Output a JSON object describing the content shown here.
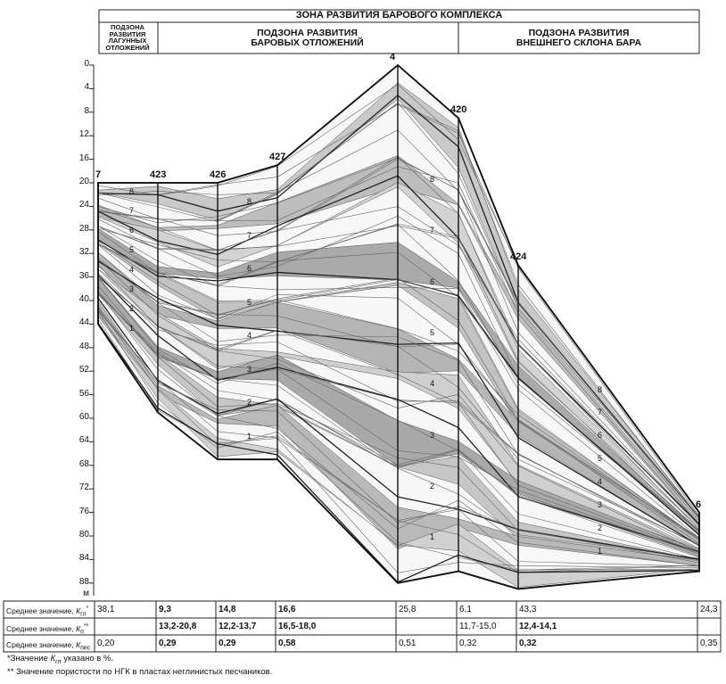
{
  "header": {
    "title": "ЗОНА РАЗВИТИЯ БАРОВОГО КОМПЛЕКСА",
    "subzone_lagoon": [
      "ПОДЗОНА",
      "РАЗВИТИЯ",
      "ЛАГУННЫХ",
      "ОТЛОЖЕНИЙ"
    ],
    "subzone_bar": [
      "ПОДЗОНА РАЗВИТИЯ",
      "БАРОВЫХ ОТЛОЖЕНИЙ"
    ],
    "subzone_slope": [
      "ПОДЗОНА РАЗВИТИЯ",
      "ВНЕШНЕГО СКЛОНА БАРА"
    ]
  },
  "depth_axis": {
    "ticks": [
      "0",
      "4",
      "8",
      "12",
      "16",
      "20",
      "24",
      "28",
      "32",
      "36",
      "40",
      "44",
      "48",
      "52",
      "56",
      "60",
      "64",
      "68",
      "72",
      "76",
      "80",
      "84",
      "88"
    ],
    "unit": "м"
  },
  "wells": [
    {
      "name": "7",
      "top": 20,
      "bottom": 44
    },
    {
      "name": "423",
      "top": 20,
      "bottom": 59
    },
    {
      "name": "426",
      "top": 20,
      "bottom": 67
    },
    {
      "name": "427",
      "top": 17,
      "bottom": 67
    },
    {
      "name": "4",
      "top": 0,
      "bottom": 88
    },
    {
      "name": "420",
      "top": 9,
      "bottom": 86
    },
    {
      "name": "424",
      "top": 34,
      "bottom": 89
    },
    {
      "name": "6",
      "top": 76,
      "bottom": 86
    }
  ],
  "layer_labels": [
    "8",
    "7",
    "6",
    "5",
    "4",
    "3",
    "2",
    "1"
  ],
  "table": {
    "rows": [
      {
        "label_main": "Среднее значение, ",
        "label_k": "К",
        "label_sub": "гл",
        "label_sup": "*",
        "values": [
          "38,1",
          "9,3",
          "14,8",
          "16,6",
          "25,8",
          "6,1",
          "43,3",
          "24,3"
        ]
      },
      {
        "label_main": "Среднее значение, ",
        "label_k": "К",
        "label_sub": "п",
        "label_sup": "**",
        "values": [
          "",
          "13,2-20,8",
          "12,2-13,7",
          "16,5-18,0",
          "",
          "11,7-15,0",
          "12,4-14,1",
          ""
        ]
      },
      {
        "label_main": "Среднее значение, ",
        "label_k": "К",
        "label_sub": "пес",
        "label_sup": "",
        "values": [
          "0,20",
          "0,29",
          "0,29",
          "0,58",
          "0,51",
          "0,32",
          "0,32",
          "0,35"
        ]
      }
    ]
  },
  "footnotes": {
    "note1_prefix": "*Значение ",
    "note1_k": "К",
    "note1_sub": "гл",
    "note1_suffix": " указано в %.",
    "note2": "** Значение пористости по НГК в пластах неглинистых песчаников."
  }
}
